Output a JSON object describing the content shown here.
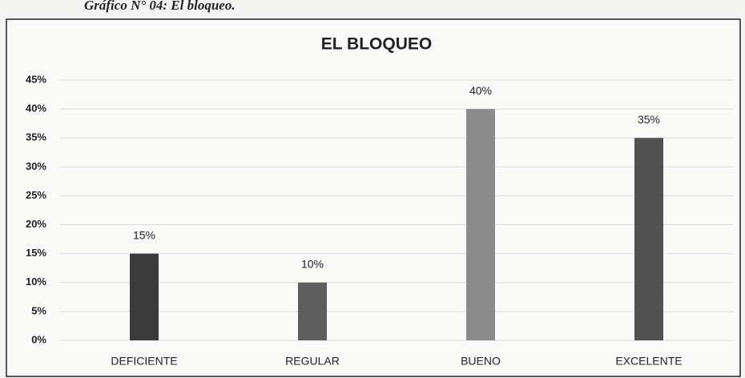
{
  "caption": "Gráfico N° 04: El bloqueo.",
  "chart_data": {
    "type": "bar",
    "title": "EL BLOQUEO",
    "categories": [
      "DEFICIENTE",
      "REGULAR",
      "BUENO",
      "EXCELENTE"
    ],
    "values": [
      15,
      10,
      40,
      35
    ],
    "value_labels": [
      "15%",
      "10%",
      "40%",
      "35%"
    ],
    "colors": [
      "#3b3b3b",
      "#5e5e5e",
      "#8c8c8c",
      "#515151"
    ],
    "ylim": [
      0,
      45
    ],
    "yticks": [
      {
        "value": 0,
        "label": "0%"
      },
      {
        "value": 5,
        "label": "5%"
      },
      {
        "value": 10,
        "label": "10%"
      },
      {
        "value": 15,
        "label": "15%"
      },
      {
        "value": 20,
        "label": "20%"
      },
      {
        "value": 25,
        "label": "25%"
      },
      {
        "value": 30,
        "label": "30%"
      },
      {
        "value": 35,
        "label": "35%"
      },
      {
        "value": 40,
        "label": "40%"
      },
      {
        "value": 45,
        "label": "45%"
      }
    ],
    "grid": true
  }
}
